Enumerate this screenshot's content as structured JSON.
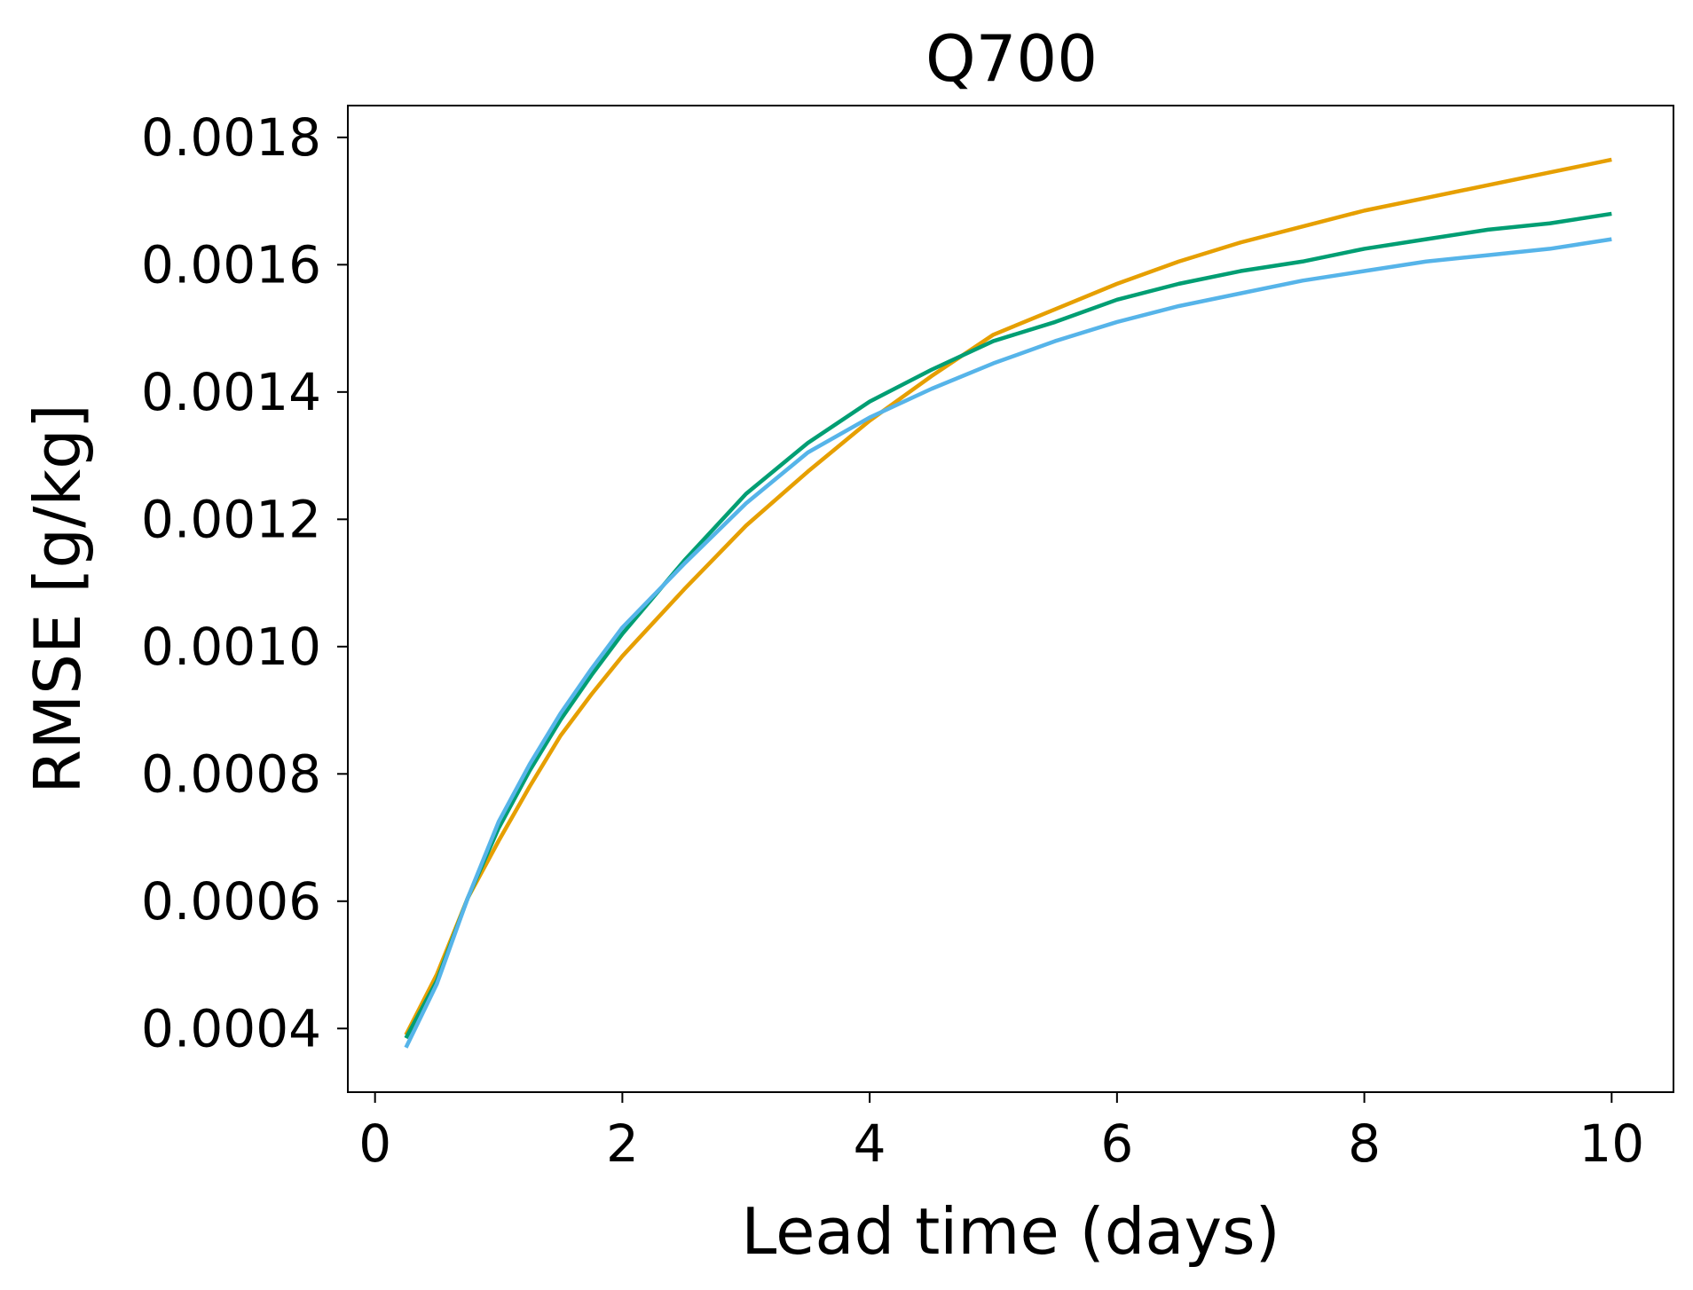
{
  "chart_data": {
    "type": "line",
    "title": "Q700",
    "xlabel": "Lead time (days)",
    "ylabel": "RMSE [g/kg]",
    "xlim": [
      -0.22,
      10.5
    ],
    "ylim": [
      0.0003,
      0.00185
    ],
    "xticks": [
      0,
      2,
      4,
      6,
      8,
      10
    ],
    "xtick_labels": [
      "0",
      "2",
      "4",
      "6",
      "8",
      "10"
    ],
    "yticks": [
      0.0004,
      0.0006,
      0.0008,
      0.001,
      0.0012,
      0.0014,
      0.0016,
      0.0018
    ],
    "ytick_labels": [
      "0.0004",
      "0.0006",
      "0.0008",
      "0.0010",
      "0.0012",
      "0.0014",
      "0.0016",
      "0.0018"
    ],
    "grid": false,
    "legend": false,
    "x": [
      0.25,
      0.5,
      0.75,
      1.0,
      1.25,
      1.5,
      1.75,
      2.0,
      2.5,
      3.0,
      3.5,
      4.0,
      4.5,
      5.0,
      5.5,
      6.0,
      6.5,
      7.0,
      7.5,
      8.0,
      8.5,
      9.0,
      9.5,
      10.0
    ],
    "series": [
      {
        "color": "#E69F00",
        "values": [
          0.00039,
          0.000485,
          0.000605,
          0.000695,
          0.00078,
          0.00086,
          0.000925,
          0.000985,
          0.00109,
          0.00119,
          0.001275,
          0.001355,
          0.001425,
          0.00149,
          0.00153,
          0.00157,
          0.001605,
          0.001635,
          0.00166,
          0.001685,
          0.001705,
          0.001725,
          0.001745,
          0.001765
        ]
      },
      {
        "color": "#009E73",
        "values": [
          0.000385,
          0.000475,
          0.000605,
          0.000715,
          0.000805,
          0.000885,
          0.000955,
          0.00102,
          0.001135,
          0.00124,
          0.00132,
          0.001385,
          0.001435,
          0.00148,
          0.00151,
          0.001545,
          0.00157,
          0.00159,
          0.001605,
          0.001625,
          0.00164,
          0.001655,
          0.001665,
          0.00168
        ]
      },
      {
        "color": "#56B4E9",
        "values": [
          0.00037,
          0.00047,
          0.000605,
          0.000725,
          0.000815,
          0.000895,
          0.000965,
          0.00103,
          0.00113,
          0.001225,
          0.001305,
          0.00136,
          0.001405,
          0.001445,
          0.00148,
          0.00151,
          0.001535,
          0.001555,
          0.001575,
          0.00159,
          0.001605,
          0.001615,
          0.001625,
          0.00164
        ]
      }
    ]
  }
}
